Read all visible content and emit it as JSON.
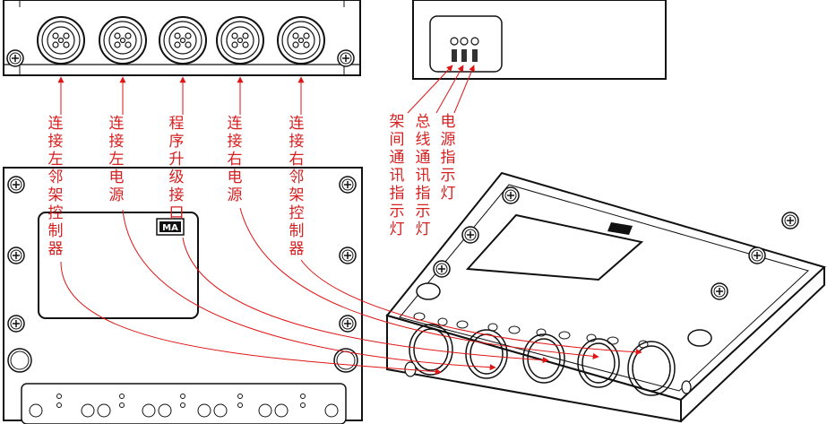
{
  "connector_labels": [
    "连接左邻架控制器",
    "连接左电源",
    "程序升级接口",
    "连接右电源",
    "连接右邻架控制器"
  ],
  "indicator_labels": [
    "架间通讯指示灯",
    "总线通讯指示灯",
    "电源指示灯"
  ],
  "badge_text": "MA",
  "colors": {
    "annotation": "#e01515",
    "outline": "#111111"
  }
}
